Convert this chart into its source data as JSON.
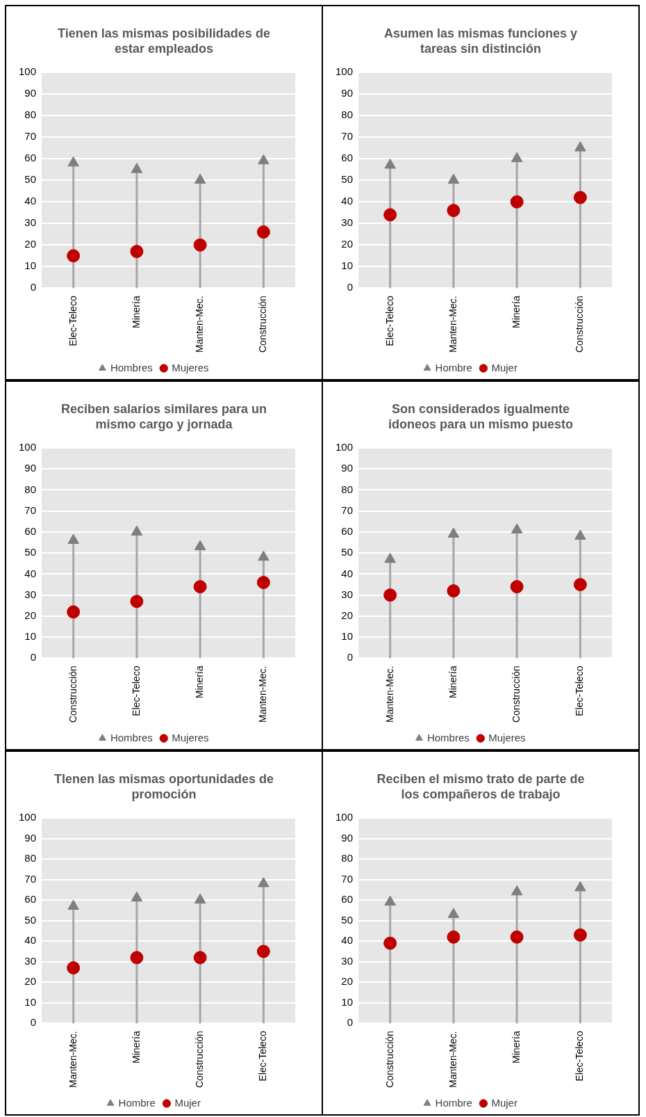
{
  "chart_data": [
    {
      "type": "lollipop",
      "title": "Tienen las mismas posibilidades de estar empleados",
      "categories": [
        "Elec-Teleco",
        "Minería",
        "Manten-Mec.",
        "Construcción"
      ],
      "series": [
        {
          "name": "Hombres",
          "color": "#7f7f7f",
          "marker": "triangle",
          "values": [
            58,
            55,
            50,
            59
          ]
        },
        {
          "name": "Mujeres",
          "type": "scatter",
          "color": "#c00000",
          "marker": "circle",
          "values": [
            15,
            17,
            20,
            26
          ]
        }
      ],
      "ylim": [
        0,
        100
      ],
      "yticks": [
        0,
        10,
        20,
        30,
        40,
        50,
        60,
        70,
        80,
        90,
        100
      ],
      "grid": "y",
      "legend": "bottom"
    },
    {
      "type": "lollipop",
      "title": "Asumen las mismas funciones y tareas sin distinción",
      "categories": [
        "Elec-Teleco",
        "Manten-Mec.",
        "Minería",
        "Construcción"
      ],
      "series": [
        {
          "name": "Hombre",
          "color": "#7f7f7f",
          "marker": "triangle",
          "values": [
            57,
            50,
            60,
            65
          ]
        },
        {
          "name": "Mujer",
          "type": "scatter",
          "color": "#c00000",
          "marker": "circle",
          "values": [
            34,
            36,
            40,
            42
          ]
        }
      ],
      "ylim": [
        0,
        100
      ],
      "yticks": [
        0,
        10,
        20,
        30,
        40,
        50,
        60,
        70,
        80,
        90,
        100
      ],
      "grid": "y",
      "legend": "bottom"
    },
    {
      "type": "lollipop",
      "title": "Reciben salarios similares para un mismo cargo y jornada",
      "categories": [
        "Construcción",
        "Elec-Teleco",
        "Minería",
        "Manten-Mec."
      ],
      "series": [
        {
          "name": "Hombres",
          "color": "#7f7f7f",
          "marker": "triangle",
          "values": [
            56,
            60,
            53,
            48
          ]
        },
        {
          "name": "Mujeres",
          "type": "scatter",
          "color": "#c00000",
          "marker": "circle",
          "values": [
            22,
            27,
            34,
            36
          ]
        }
      ],
      "ylim": [
        0,
        100
      ],
      "yticks": [
        0,
        10,
        20,
        30,
        40,
        50,
        60,
        70,
        80,
        90,
        100
      ],
      "grid": "y",
      "legend": "bottom"
    },
    {
      "type": "lollipop",
      "title": "Son considerados igualmente idoneos para un mismo puesto",
      "categories": [
        "Manten-Mec.",
        "Minería",
        "Construcción",
        "Elec-Teleco"
      ],
      "series": [
        {
          "name": "Hombres",
          "color": "#7f7f7f",
          "marker": "triangle",
          "values": [
            47,
            59,
            61,
            58
          ]
        },
        {
          "name": "Mujeres",
          "type": "scatter",
          "color": "#c00000",
          "marker": "circle",
          "values": [
            30,
            32,
            34,
            35
          ]
        }
      ],
      "ylim": [
        0,
        100
      ],
      "yticks": [
        0,
        10,
        20,
        30,
        40,
        50,
        60,
        70,
        80,
        90,
        100
      ],
      "grid": "y",
      "legend": "bottom"
    },
    {
      "type": "lollipop",
      "title": "TIenen las mismas oportunidades de promoción",
      "categories": [
        "Manten-Mec.",
        "Minería",
        "Construcción",
        "Elec-Teleco"
      ],
      "series": [
        {
          "name": "Hombre",
          "color": "#7f7f7f",
          "marker": "triangle",
          "values": [
            57,
            61,
            60,
            68
          ]
        },
        {
          "name": "Mujer",
          "type": "scatter",
          "color": "#c00000",
          "marker": "circle",
          "values": [
            27,
            32,
            32,
            35
          ]
        }
      ],
      "ylim": [
        0,
        100
      ],
      "yticks": [
        0,
        10,
        20,
        30,
        40,
        50,
        60,
        70,
        80,
        90,
        100
      ],
      "grid": "y",
      "legend": "bottom"
    },
    {
      "type": "lollipop",
      "title": "Reciben el mismo trato de parte de los compañeros de trabajo",
      "categories": [
        "Construcción",
        "Manten-Mec.",
        "Minería",
        "Elec-Teleco"
      ],
      "series": [
        {
          "name": "Hombre",
          "color": "#7f7f7f",
          "marker": "triangle",
          "values": [
            59,
            53,
            64,
            66
          ]
        },
        {
          "name": "Mujer",
          "type": "scatter",
          "color": "#c00000",
          "marker": "circle",
          "values": [
            39,
            42,
            42,
            43
          ]
        }
      ],
      "ylim": [
        0,
        100
      ],
      "yticks": [
        0,
        10,
        20,
        30,
        40,
        50,
        60,
        70,
        80,
        90,
        100
      ],
      "grid": "y",
      "legend": "bottom"
    }
  ]
}
